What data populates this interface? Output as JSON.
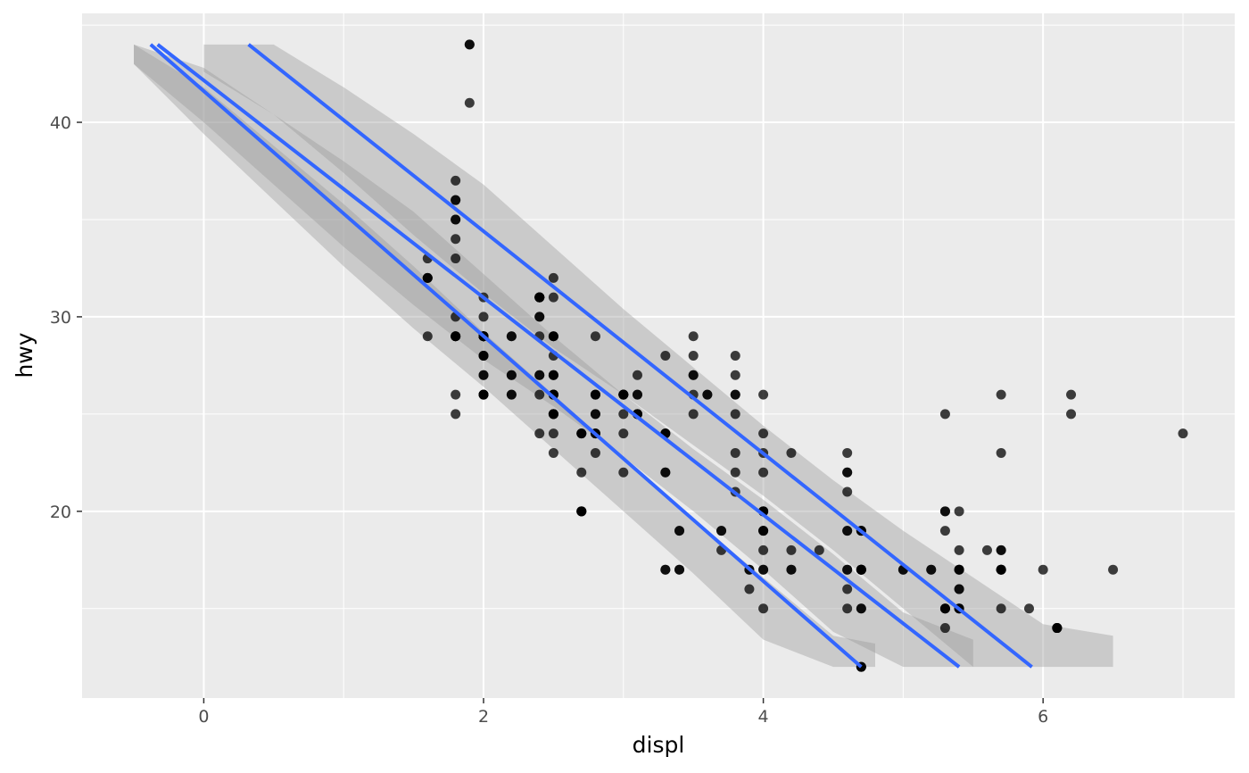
{
  "chart_data": {
    "type": "scatter",
    "title": "",
    "xlabel": "displ",
    "ylabel": "hwy",
    "xlim": [
      -0.87,
      7.37
    ],
    "ylim": [
      10.4,
      45.6
    ],
    "x_ticks": [
      0,
      2,
      4,
      6
    ],
    "y_ticks": [
      20,
      30,
      40
    ],
    "grid": true,
    "panel_background": "#ebebeb",
    "point_color": "#000000",
    "line_color": "#3366ff",
    "ribbon_color": "#999999",
    "points": [
      [
        1.8,
        29
      ],
      [
        1.8,
        29
      ],
      [
        2.0,
        31
      ],
      [
        2.0,
        30
      ],
      [
        2.8,
        26
      ],
      [
        2.8,
        26
      ],
      [
        3.1,
        27
      ],
      [
        1.8,
        26
      ],
      [
        1.8,
        25
      ],
      [
        2.0,
        28
      ],
      [
        2.0,
        27
      ],
      [
        2.8,
        25
      ],
      [
        2.8,
        25
      ],
      [
        3.1,
        25
      ],
      [
        3.1,
        25
      ],
      [
        2.8,
        24
      ],
      [
        3.1,
        25
      ],
      [
        4.2,
        23
      ],
      [
        5.3,
        20
      ],
      [
        5.3,
        15
      ],
      [
        5.3,
        20
      ],
      [
        5.7,
        17
      ],
      [
        6.0,
        17
      ],
      [
        5.7,
        26
      ],
      [
        5.7,
        23
      ],
      [
        6.2,
        26
      ],
      [
        6.2,
        25
      ],
      [
        7.0,
        24
      ],
      [
        5.3,
        19
      ],
      [
        5.3,
        14
      ],
      [
        5.7,
        15
      ],
      [
        6.5,
        17
      ],
      [
        2.4,
        30
      ],
      [
        2.4,
        31
      ],
      [
        3.1,
        26
      ],
      [
        3.5,
        29
      ],
      [
        3.6,
        26
      ],
      [
        2.4,
        24
      ],
      [
        3.0,
        24
      ],
      [
        3.3,
        22
      ],
      [
        3.3,
        22
      ],
      [
        3.3,
        24
      ],
      [
        3.3,
        24
      ],
      [
        3.3,
        24
      ],
      [
        3.8,
        22
      ],
      [
        3.8,
        21
      ],
      [
        3.8,
        23
      ],
      [
        4.0,
        23
      ],
      [
        3.7,
        19
      ],
      [
        3.7,
        18
      ],
      [
        3.9,
        17
      ],
      [
        3.9,
        17
      ],
      [
        4.7,
        19
      ],
      [
        4.7,
        19
      ],
      [
        4.7,
        12
      ],
      [
        5.2,
        17
      ],
      [
        5.2,
        17
      ],
      [
        3.9,
        16
      ],
      [
        4.7,
        15
      ],
      [
        4.7,
        17
      ],
      [
        5.9,
        15
      ],
      [
        5.4,
        16
      ],
      [
        5.4,
        17
      ],
      [
        4.7,
        12
      ],
      [
        4.7,
        17
      ],
      [
        4.7,
        17
      ],
      [
        5.7,
        17
      ],
      [
        5.7,
        17
      ],
      [
        6.1,
        14
      ],
      [
        6.1,
        14
      ],
      [
        5.3,
        15
      ],
      [
        5.3,
        15
      ],
      [
        5.7,
        17
      ],
      [
        6.1,
        14
      ],
      [
        5.4,
        15
      ],
      [
        5.4,
        15
      ],
      [
        4.0,
        19
      ],
      [
        4.0,
        22
      ],
      [
        4.0,
        17
      ],
      [
        4.0,
        19
      ],
      [
        4.6,
        19
      ],
      [
        5.0,
        17
      ],
      [
        4.2,
        17
      ],
      [
        4.2,
        17
      ],
      [
        4.6,
        17
      ],
      [
        4.6,
        16
      ],
      [
        4.6,
        17
      ],
      [
        5.4,
        15
      ],
      [
        5.4,
        17
      ],
      [
        3.8,
        26
      ],
      [
        3.8,
        25
      ],
      [
        4.0,
        26
      ],
      [
        4.0,
        24
      ],
      [
        4.6,
        21
      ],
      [
        4.6,
        22
      ],
      [
        4.6,
        23
      ],
      [
        4.6,
        22
      ],
      [
        5.4,
        20
      ],
      [
        1.6,
        33
      ],
      [
        1.6,
        32
      ],
      [
        1.6,
        32
      ],
      [
        1.6,
        29
      ],
      [
        1.6,
        32
      ],
      [
        1.8,
        34
      ],
      [
        1.8,
        36
      ],
      [
        1.8,
        36
      ],
      [
        2.0,
        29
      ],
      [
        2.4,
        26
      ],
      [
        2.4,
        27
      ],
      [
        2.4,
        30
      ],
      [
        2.4,
        31
      ],
      [
        2.5,
        26
      ],
      [
        2.5,
        26
      ],
      [
        3.3,
        28
      ],
      [
        2.0,
        26
      ],
      [
        2.0,
        29
      ],
      [
        2.0,
        28
      ],
      [
        2.0,
        27
      ],
      [
        2.7,
        24
      ],
      [
        2.7,
        24
      ],
      [
        2.7,
        24
      ],
      [
        3.0,
        22
      ],
      [
        3.7,
        19
      ],
      [
        4.0,
        20
      ],
      [
        4.7,
        17
      ],
      [
        4.7,
        12
      ],
      [
        4.7,
        19
      ],
      [
        5.7,
        18
      ],
      [
        6.1,
        14
      ],
      [
        4.0,
        15
      ],
      [
        4.2,
        18
      ],
      [
        4.4,
        18
      ],
      [
        4.6,
        15
      ],
      [
        5.4,
        17
      ],
      [
        5.4,
        16
      ],
      [
        5.4,
        18
      ],
      [
        4.0,
        17
      ],
      [
        4.0,
        19
      ],
      [
        4.6,
        19
      ],
      [
        5.0,
        17
      ],
      [
        2.4,
        29
      ],
      [
        2.4,
        27
      ],
      [
        2.5,
        31
      ],
      [
        2.5,
        32
      ],
      [
        3.5,
        27
      ],
      [
        3.5,
        26
      ],
      [
        3.0,
        26
      ],
      [
        3.0,
        25
      ],
      [
        3.5,
        25
      ],
      [
        3.3,
        17
      ],
      [
        3.3,
        17
      ],
      [
        4.0,
        20
      ],
      [
        5.6,
        18
      ],
      [
        3.1,
        26
      ],
      [
        3.8,
        26
      ],
      [
        3.8,
        27
      ],
      [
        3.8,
        28
      ],
      [
        5.3,
        25
      ],
      [
        2.5,
        25
      ],
      [
        2.5,
        24
      ],
      [
        2.5,
        27
      ],
      [
        2.5,
        25
      ],
      [
        2.5,
        26
      ],
      [
        2.5,
        23
      ],
      [
        2.2,
        26
      ],
      [
        2.2,
        26
      ],
      [
        2.5,
        26
      ],
      [
        2.5,
        26
      ],
      [
        2.5,
        25
      ],
      [
        2.5,
        27
      ],
      [
        2.5,
        25
      ],
      [
        2.5,
        27
      ],
      [
        2.7,
        20
      ],
      [
        2.7,
        20
      ],
      [
        3.4,
        19
      ],
      [
        3.4,
        17
      ],
      [
        4.0,
        20
      ],
      [
        4.7,
        17
      ],
      [
        2.2,
        29
      ],
      [
        2.2,
        27
      ],
      [
        2.4,
        31
      ],
      [
        2.4,
        31
      ],
      [
        3.0,
        26
      ],
      [
        3.0,
        26
      ],
      [
        3.5,
        28
      ],
      [
        2.2,
        27
      ],
      [
        2.2,
        29
      ],
      [
        2.4,
        31
      ],
      [
        2.4,
        31
      ],
      [
        3.0,
        26
      ],
      [
        3.0,
        26
      ],
      [
        3.5,
        27
      ],
      [
        1.8,
        30
      ],
      [
        1.8,
        33
      ],
      [
        1.8,
        35
      ],
      [
        1.8,
        37
      ],
      [
        1.8,
        35
      ],
      [
        4.7,
        15
      ],
      [
        5.7,
        18
      ],
      [
        2.7,
        20
      ],
      [
        2.7,
        20
      ],
      [
        2.7,
        22
      ],
      [
        3.4,
        17
      ],
      [
        3.4,
        19
      ],
      [
        4.0,
        18
      ],
      [
        4.0,
        20
      ],
      [
        2.0,
        29
      ],
      [
        2.0,
        26
      ],
      [
        2.0,
        29
      ],
      [
        2.0,
        29
      ],
      [
        2.8,
        24
      ],
      [
        1.9,
        44
      ],
      [
        2.0,
        29
      ],
      [
        2.0,
        26
      ],
      [
        2.0,
        29
      ],
      [
        2.0,
        29
      ],
      [
        2.5,
        29
      ],
      [
        2.5,
        29
      ],
      [
        2.8,
        23
      ],
      [
        2.8,
        24
      ],
      [
        1.9,
        44
      ],
      [
        1.9,
        41
      ],
      [
        2.0,
        29
      ],
      [
        2.0,
        26
      ],
      [
        2.5,
        28
      ],
      [
        2.5,
        29
      ],
      [
        1.8,
        29
      ],
      [
        1.8,
        29
      ],
      [
        2.0,
        29
      ],
      [
        2.0,
        28
      ],
      [
        2.8,
        29
      ],
      [
        2.8,
        26
      ],
      [
        3.6,
        26
      ]
    ],
    "fit_lines": [
      {
        "x": [
          0.32,
          5.92
        ],
        "y": [
          44,
          12
        ]
      },
      {
        "x": [
          -0.33,
          5.4
        ],
        "y": [
          44,
          12
        ]
      },
      {
        "x": [
          -0.38,
          4.7
        ],
        "y": [
          44,
          12
        ]
      }
    ],
    "ribbons": [
      {
        "x": [
          0.0,
          0.5,
          1.0,
          1.5,
          2.0,
          2.5,
          3.0,
          3.5,
          4.0,
          4.5,
          5.0,
          5.5,
          6.0,
          6.5
        ],
        "y": [
          44,
          42.4,
          39.6,
          36.8,
          34.0,
          31.0,
          28.2,
          25.4,
          22.6,
          19.8,
          17.0,
          14.2,
          12,
          12
        ],
        "band": [
          1.4,
          2.0,
          2.2,
          2.6,
          2.8,
          2.6,
          2.2,
          2.0,
          1.8,
          1.8,
          2.0,
          2.4,
          2.2,
          1.6
        ]
      },
      {
        "x": [
          -0.5,
          0.0,
          0.5,
          1.0,
          1.5,
          2.0,
          2.5,
          3.0,
          3.5,
          4.0,
          4.5,
          5.0,
          5.5
        ],
        "y": [
          44,
          41.4,
          38.6,
          35.8,
          33.0,
          30.0,
          27.2,
          24.4,
          21.6,
          18.8,
          15.8,
          13.0,
          12
        ],
        "band": [
          1.0,
          1.4,
          1.8,
          2.2,
          2.4,
          2.2,
          1.8,
          1.6,
          1.6,
          1.8,
          2.0,
          1.8,
          1.4
        ]
      },
      {
        "x": [
          -0.5,
          0.0,
          0.5,
          1.0,
          1.5,
          2.0,
          2.5,
          3.0,
          3.5,
          4.0,
          4.5,
          4.8
        ],
        "y": [
          44,
          40.6,
          37.4,
          34.2,
          31.0,
          27.8,
          24.6,
          21.4,
          18.2,
          15.0,
          12.0,
          12
        ],
        "band": [
          1.0,
          1.2,
          1.4,
          1.6,
          1.6,
          1.4,
          1.4,
          1.4,
          1.4,
          1.6,
          1.6,
          1.2
        ]
      }
    ]
  }
}
